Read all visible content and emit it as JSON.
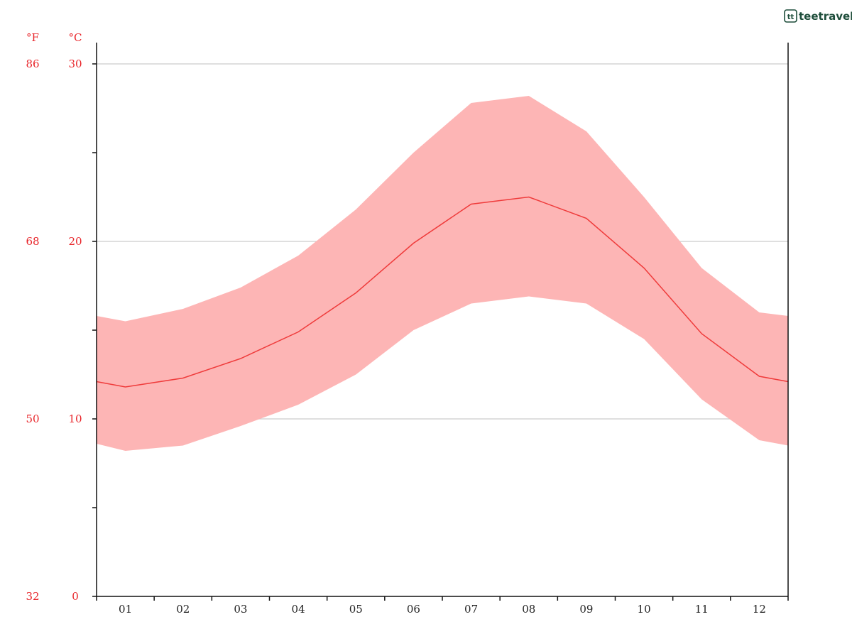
{
  "brand": {
    "logo_text": "teetravel",
    "logo_mark": "tt"
  },
  "chart_data": {
    "type": "area",
    "title": "",
    "xlabel": "",
    "ylabel": "",
    "categories": [
      "01",
      "02",
      "03",
      "04",
      "05",
      "06",
      "07",
      "08",
      "09",
      "10",
      "11",
      "12"
    ],
    "x_range": [
      0.5,
      12.5
    ],
    "y_unit_celsius": "°C",
    "y_unit_fahrenheit": "°F",
    "ylim": [
      0,
      30
    ],
    "celsius_ticks": [
      0,
      10,
      20,
      30
    ],
    "fahrenheit_ticks": [
      32,
      50,
      68,
      86
    ],
    "minor_ticks": [
      5,
      15,
      25
    ],
    "grid_lines": [
      10,
      20,
      30
    ],
    "series": [
      {
        "name": "max",
        "x": [
          0.5,
          1,
          2,
          3,
          4,
          5,
          6,
          7,
          8,
          9,
          10,
          11,
          12,
          12.5
        ],
        "values": [
          15.8,
          15.5,
          16.2,
          17.4,
          19.2,
          21.8,
          25.0,
          27.8,
          28.2,
          26.2,
          22.5,
          18.5,
          16.0,
          15.8
        ]
      },
      {
        "name": "mean",
        "x": [
          0.5,
          1,
          2,
          3,
          4,
          5,
          6,
          7,
          8,
          9,
          10,
          11,
          12,
          12.5
        ],
        "values": [
          12.1,
          11.8,
          12.3,
          13.4,
          14.9,
          17.1,
          19.9,
          22.1,
          22.5,
          21.3,
          18.5,
          14.8,
          12.4,
          12.1
        ]
      },
      {
        "name": "min",
        "x": [
          0.5,
          1,
          2,
          3,
          4,
          5,
          6,
          7,
          8,
          9,
          10,
          11,
          12,
          12.5
        ],
        "values": [
          8.6,
          8.2,
          8.5,
          9.6,
          10.8,
          12.5,
          15.0,
          16.5,
          16.9,
          16.5,
          14.5,
          11.1,
          8.8,
          8.5
        ]
      }
    ],
    "colors": {
      "band": "#fdb5b5",
      "line": "#ef3b3b",
      "label": "#e8252a",
      "grid": "#cccccc",
      "axis": "#111111",
      "logo": "#1d4d3a"
    },
    "grid": true,
    "legend": "none"
  }
}
